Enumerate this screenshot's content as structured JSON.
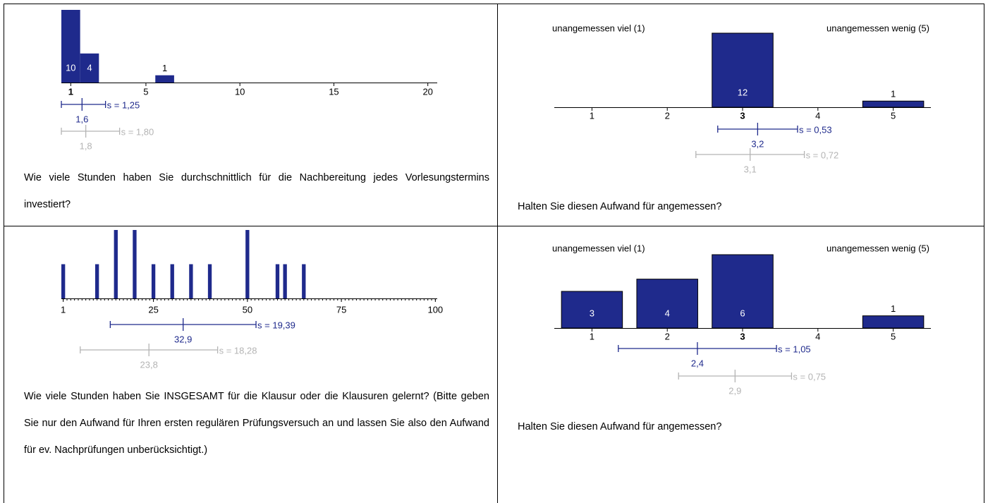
{
  "chart_data": [
    {
      "type": "bar",
      "x": [
        1,
        2,
        6
      ],
      "values": [
        10,
        4,
        1
      ],
      "color": "#1f2a8c",
      "show_values": true,
      "xlim": [
        0.5,
        20.5
      ],
      "ylim": [
        0,
        10
      ],
      "xticks": [
        1,
        5,
        10,
        15,
        20
      ],
      "emphasized_tick": 1,
      "stats": [
        {
          "color": "#1f2a8c",
          "mean": {
            "value": 1.6,
            "label": "1,6"
          },
          "sd": {
            "value": 1.25,
            "label": "s = 1,25"
          }
        },
        {
          "color": "#b4b4b4",
          "mean": {
            "value": 1.8,
            "label": "1,8"
          },
          "sd": {
            "value": 1.8,
            "label": "s = 1,80"
          }
        }
      ],
      "question": "Wie viele Stunden haben Sie durchschnittlich für die Nachbereitung jedes Vorlesungstermins investiert?"
    },
    {
      "type": "bar",
      "x": [
        1,
        2,
        3,
        4,
        5
      ],
      "values": [
        0,
        0,
        12,
        0,
        1
      ],
      "color": "#1f2a8c",
      "show_values": true,
      "xlim": [
        0.5,
        5.5
      ],
      "ylim": [
        0,
        12
      ],
      "xticks": [
        1,
        2,
        3,
        4,
        5
      ],
      "emphasized_tick": 3,
      "scale_labels": [
        "unangemessen viel (1)",
        "unangemessen wenig (5)"
      ],
      "stats": [
        {
          "color": "#1f2a8c",
          "mean": {
            "value": 3.2,
            "label": "3,2"
          },
          "sd": {
            "value": 0.53,
            "label": "s = 0,53"
          }
        },
        {
          "color": "#b4b4b4",
          "mean": {
            "value": 3.1,
            "label": "3,1"
          },
          "sd": {
            "value": 0.72,
            "label": "s = 0,72"
          }
        }
      ],
      "question": "Halten Sie diesen Aufwand für angemessen?"
    },
    {
      "type": "bar",
      "x": [
        1,
        10,
        15,
        20,
        25,
        30,
        35,
        40,
        50,
        58,
        60,
        65
      ],
      "values": [
        1,
        1,
        2,
        2,
        1,
        1,
        1,
        1,
        2,
        1,
        1,
        1
      ],
      "color": "#1f2a8c",
      "show_values": false,
      "xlim": [
        0.5,
        100.5
      ],
      "ylim": [
        0,
        2
      ],
      "xticks": [
        1,
        25,
        50,
        75,
        100
      ],
      "xminorticks": [
        1,
        2,
        3,
        4,
        5,
        6,
        7,
        8,
        9,
        10,
        11,
        12,
        13,
        14,
        15,
        16,
        17,
        18,
        19,
        20,
        21,
        22,
        23,
        24,
        25,
        26,
        27,
        28,
        29,
        30,
        31,
        32,
        33,
        34,
        35,
        36,
        37,
        38,
        39,
        40,
        41,
        42,
        43,
        44,
        45,
        46,
        47,
        48,
        49,
        50,
        51,
        52,
        53,
        54,
        55,
        56,
        57,
        58,
        59,
        60,
        61,
        62,
        63,
        64,
        65,
        66,
        67,
        68,
        69,
        70,
        71,
        72,
        73,
        74,
        75,
        76,
        77,
        78,
        79,
        80,
        81,
        82,
        83,
        84,
        85,
        86,
        87,
        88,
        89,
        90,
        91,
        92,
        93,
        94,
        95,
        96,
        97,
        98,
        99,
        100
      ],
      "stats": [
        {
          "color": "#1f2a8c",
          "mean": {
            "value": 32.9,
            "label": "32,9"
          },
          "sd": {
            "value": 19.39,
            "label": "s = 19,39"
          }
        },
        {
          "color": "#b4b4b4",
          "mean": {
            "value": 23.8,
            "label": "23,8"
          },
          "sd": {
            "value": 18.28,
            "label": "s = 18,28"
          }
        }
      ],
      "question": "Wie viele Stunden haben Sie INSGESAMT für die Klausur oder die Klausuren gelernt? (Bitte geben Sie nur den Aufwand für Ihren ersten regulären Prüfungsversuch an und lassen Sie also den Aufwand für ev. Nachprüfungen unberücksichtigt.)"
    },
    {
      "type": "bar",
      "x": [
        1,
        2,
        3,
        4,
        5
      ],
      "values": [
        3,
        4,
        6,
        0,
        1
      ],
      "color": "#1f2a8c",
      "show_values": true,
      "xlim": [
        0.5,
        5.5
      ],
      "ylim": [
        0,
        6
      ],
      "xticks": [
        1,
        2,
        3,
        4,
        5
      ],
      "emphasized_tick": 3,
      "scale_labels": [
        "unangemessen viel (1)",
        "unangemessen wenig (5)"
      ],
      "stats": [
        {
          "color": "#1f2a8c",
          "mean": {
            "value": 2.4,
            "label": "2,4"
          },
          "sd": {
            "value": 1.05,
            "label": "s = 1,05"
          }
        },
        {
          "color": "#b4b4b4",
          "mean": {
            "value": 2.9,
            "label": "2,9"
          },
          "sd": {
            "value": 0.75,
            "label": "s = 0,75"
          }
        }
      ],
      "question": "Halten Sie diesen Aufwand für angemessen?"
    }
  ]
}
